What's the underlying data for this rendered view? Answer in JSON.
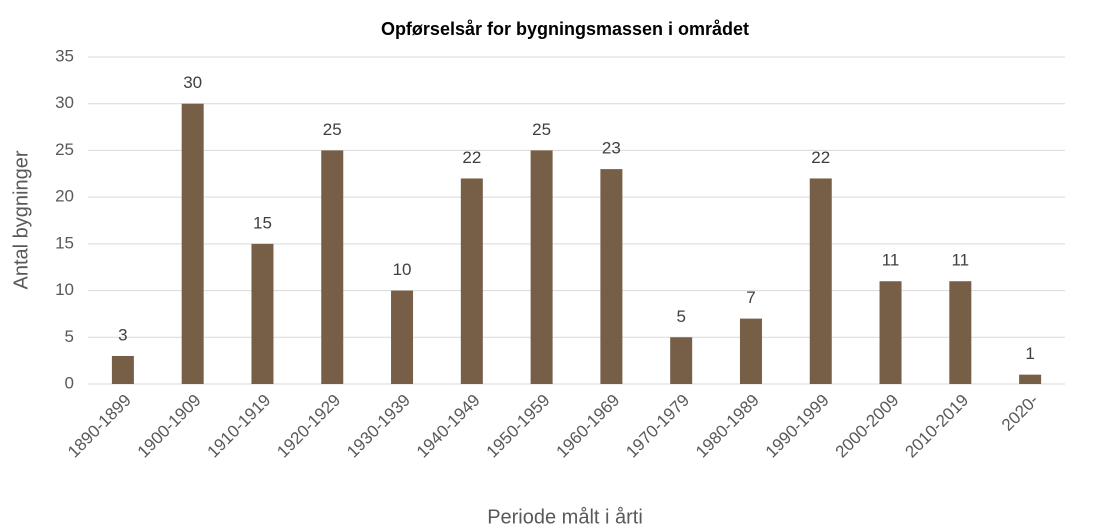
{
  "chart_data": {
    "type": "bar",
    "title": "Opførselsår for bygningsmassen i området",
    "xlabel": "Periode målt i årti",
    "ylabel": "Antal bygninger",
    "categories": [
      "1890-1899",
      "1900-1909",
      "1910-1919",
      "1920-1929",
      "1930-1939",
      "1940-1949",
      "1950-1959",
      "1960-1969",
      "1970-1979",
      "1980-1989",
      "1990-1999",
      "2000-2009",
      "2010-2019",
      "2020-"
    ],
    "values": [
      3,
      30,
      15,
      25,
      10,
      22,
      25,
      23,
      5,
      7,
      22,
      11,
      11,
      1
    ],
    "color": "#765e47",
    "ylim": [
      0,
      35
    ],
    "yticks": [
      0,
      5,
      10,
      15,
      20,
      25,
      30,
      35
    ],
    "grid": true
  }
}
